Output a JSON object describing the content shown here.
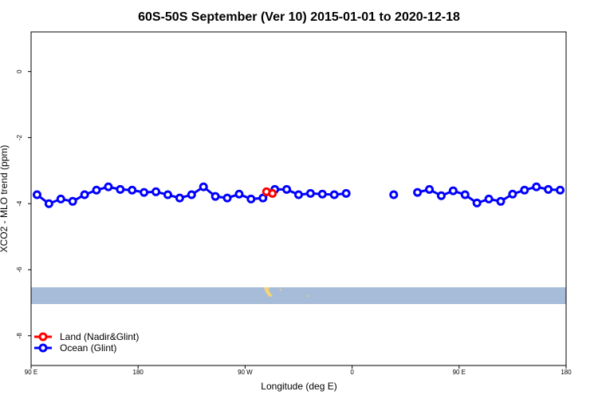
{
  "chart_data": {
    "type": "line",
    "title": "60S-50S September (Ver 10)   2015-01-01 to 2020-12-18",
    "x_label": "Longitude (deg E)",
    "y_label": "XCO2 - MLO trend (ppm)",
    "xlim": [
      90,
      540
    ],
    "ylim": [
      -8.9,
      1.2
    ],
    "xticks": [
      {
        "value": 90,
        "label": "90 E"
      },
      {
        "value": 180,
        "label": "180"
      },
      {
        "value": 270,
        "label": "90 W"
      },
      {
        "value": 360,
        "label": "0"
      },
      {
        "value": 450,
        "label": "90 E"
      },
      {
        "value": 540,
        "label": "180"
      }
    ],
    "yticks": [
      0,
      -2,
      -4,
      -6,
      -8
    ],
    "legend": "bottom-left",
    "series": [
      {
        "name": "Land (Nadir&Glint)",
        "color": "#ff0000",
        "x": [
          288,
          293
        ],
        "values": [
          -3.64,
          -3.69
        ]
      },
      {
        "name": "Ocean (Glint)",
        "color": "#0000ff",
        "x": [
          95,
          105,
          115,
          125,
          135,
          145,
          155,
          165,
          175,
          185,
          195,
          205,
          215,
          225,
          235,
          245,
          255,
          265,
          275,
          285,
          295,
          305,
          315,
          325,
          335,
          345,
          355,
          365,
          375,
          385,
          395,
          405,
          415,
          425,
          435,
          445,
          455,
          465,
          475,
          485,
          495,
          505,
          515,
          525,
          535
        ],
        "values": [
          -3.73,
          -4.0,
          -3.86,
          -3.93,
          -3.73,
          -3.59,
          -3.49,
          -3.57,
          -3.59,
          -3.66,
          -3.64,
          -3.73,
          -3.83,
          -3.73,
          -3.49,
          -3.78,
          -3.83,
          -3.71,
          -3.86,
          -3.83,
          -3.57,
          -3.57,
          -3.73,
          -3.69,
          -3.71,
          -3.73,
          -3.69,
          null,
          null,
          null,
          -3.73,
          null,
          -3.66,
          -3.57,
          -3.76,
          -3.61,
          -3.73,
          -3.98,
          -3.86,
          -3.93,
          -3.71,
          -3.59,
          -3.49,
          -3.57,
          -3.59
        ]
      }
    ]
  }
}
